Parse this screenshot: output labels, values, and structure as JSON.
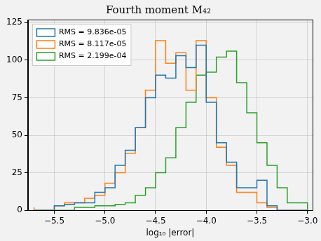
{
  "chart_data": {
    "type": "histogram",
    "title": "Fourth moment M₄₂",
    "x_label": "log₁₀ |error|",
    "bins": [
      -5.7,
      -5.6,
      -5.5,
      -5.4,
      -5.3,
      -5.2,
      -5.1,
      -5.0,
      -4.9,
      -4.8,
      -4.7,
      -4.6,
      -4.5,
      -4.4,
      -4.3,
      -4.2,
      -4.1,
      -4.0,
      -3.9,
      -3.8,
      -3.7,
      -3.6,
      -3.5,
      -3.4,
      -3.3,
      -3.2,
      -3.1,
      -3.0
    ],
    "series": [
      {
        "name": "RMS = 9.836e-05",
        "color": "#1f77b4",
        "values": [
          0,
          0,
          0,
          3,
          4,
          5,
          5,
          12,
          15,
          30,
          40,
          55,
          75,
          90,
          88,
          103,
          95,
          110,
          72,
          45,
          32,
          15,
          15,
          20,
          3,
          0,
          0
        ]
      },
      {
        "name": "RMS = 8.117e-05",
        "color": "#ff7f0e",
        "values": [
          2,
          0,
          0,
          3,
          5,
          5,
          8,
          10,
          18,
          25,
          38,
          55,
          80,
          113,
          98,
          105,
          80,
          113,
          75,
          42,
          30,
          12,
          12,
          5,
          2,
          0,
          0
        ]
      },
      {
        "name": "RMS = 2.199e-04",
        "color": "#2ca02c",
        "values": [
          0,
          0,
          0,
          0,
          0,
          2,
          2,
          3,
          3,
          4,
          5,
          10,
          15,
          25,
          35,
          55,
          72,
          90,
          92,
          102,
          106,
          85,
          65,
          45,
          30,
          15,
          5
        ]
      }
    ],
    "xlim": [
      -5.76,
      -2.95
    ],
    "xticks": [
      {
        "value": -5.5,
        "label": "−5.5"
      },
      {
        "value": -5.0,
        "label": "−5.0"
      },
      {
        "value": -4.5,
        "label": "−4.5"
      },
      {
        "value": -4.0,
        "label": "−4.0"
      },
      {
        "value": -3.5,
        "label": "−3.5"
      },
      {
        "value": -3.0,
        "label": "−3.0"
      }
    ],
    "ylim": [
      0,
      127
    ],
    "yticks": [
      0,
      25,
      50,
      75,
      100,
      125
    ],
    "grid": true,
    "legend": "upper left",
    "line_style": "step"
  }
}
